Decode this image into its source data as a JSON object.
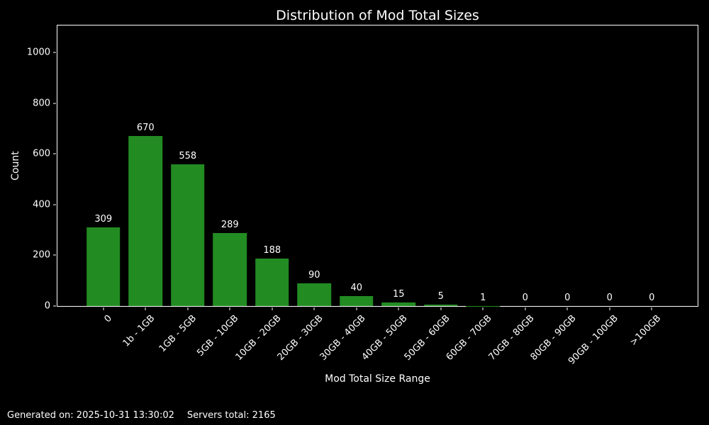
{
  "chart_data": {
    "type": "bar",
    "title": "Distribution of Mod Total Sizes",
    "xlabel": "Mod Total Size Range",
    "ylabel": "Count",
    "categories": [
      "0",
      "1b - 1GB",
      "1GB - 5GB",
      "5GB - 10GB",
      "10GB - 20GB",
      "20GB - 30GB",
      "30GB - 40GB",
      "40GB - 50GB",
      "50GB - 60GB",
      "60GB - 70GB",
      "70GB - 80GB",
      "80GB - 90GB",
      "90GB - 100GB",
      ">100GB"
    ],
    "values": [
      309,
      670,
      558,
      289,
      188,
      90,
      40,
      15,
      5,
      1,
      0,
      0,
      0,
      0
    ],
    "bar_labels": true,
    "yticks": [
      0,
      200,
      400,
      600,
      800,
      1000
    ],
    "ylim": [
      0,
      1107
    ],
    "grid": false,
    "legend": null,
    "colors": {
      "bar": "#228B22",
      "background": "#000000",
      "text": "#ffffff",
      "spine": "#ffffff"
    }
  },
  "footer": {
    "generated_on": "Generated on: 2025-10-31 13:30:02",
    "servers_total": "Servers total: 2165"
  }
}
